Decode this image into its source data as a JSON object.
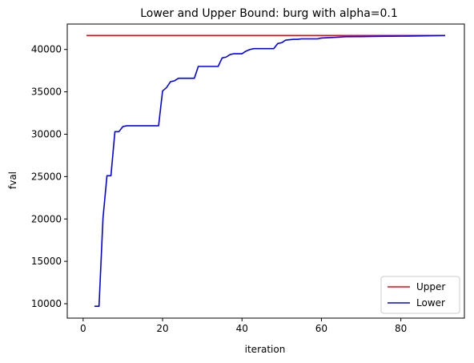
{
  "chart_data": {
    "type": "line",
    "title": "Lower and Upper Bound: burg with alpha=0.1",
    "xlabel": "iteration",
    "ylabel": "fval",
    "xlim": [
      -4,
      96
    ],
    "ylim": [
      8300,
      43000
    ],
    "xticks": [
      0,
      20,
      40,
      60,
      80
    ],
    "yticks": [
      10000,
      15000,
      20000,
      25000,
      30000,
      35000,
      40000
    ],
    "grid": false,
    "legend_position": "lower-right",
    "series": [
      {
        "name": "Upper",
        "color": "#ff0000",
        "x": [
          1,
          91
        ],
        "y": [
          41650,
          41650
        ]
      },
      {
        "name": "Lower",
        "color": "#0000ff",
        "x": [
          3,
          4,
          5,
          6,
          7,
          8,
          9,
          10,
          11,
          19,
          20,
          21,
          22,
          23,
          24,
          25,
          26,
          27,
          28,
          29,
          30,
          31,
          34,
          35,
          36,
          37,
          38,
          39,
          40,
          41,
          42,
          43,
          44,
          45,
          46,
          47,
          48,
          49,
          50,
          51,
          52,
          53,
          54,
          55,
          56,
          57,
          58,
          59,
          60,
          62,
          64,
          66,
          70,
          75,
          80,
          85,
          88,
          91
        ],
        "y": [
          9700,
          9700,
          20100,
          25100,
          25100,
          30300,
          30300,
          30900,
          31000,
          31000,
          35100,
          35500,
          36200,
          36300,
          36600,
          36600,
          36600,
          36600,
          36600,
          38000,
          38000,
          38000,
          38000,
          39000,
          39100,
          39400,
          39500,
          39500,
          39500,
          39800,
          40000,
          40100,
          40100,
          40100,
          40100,
          40100,
          40100,
          40700,
          40800,
          41100,
          41150,
          41200,
          41200,
          41250,
          41250,
          41250,
          41250,
          41250,
          41350,
          41400,
          41450,
          41500,
          41520,
          41550,
          41570,
          41600,
          41620,
          41650
        ]
      }
    ]
  }
}
